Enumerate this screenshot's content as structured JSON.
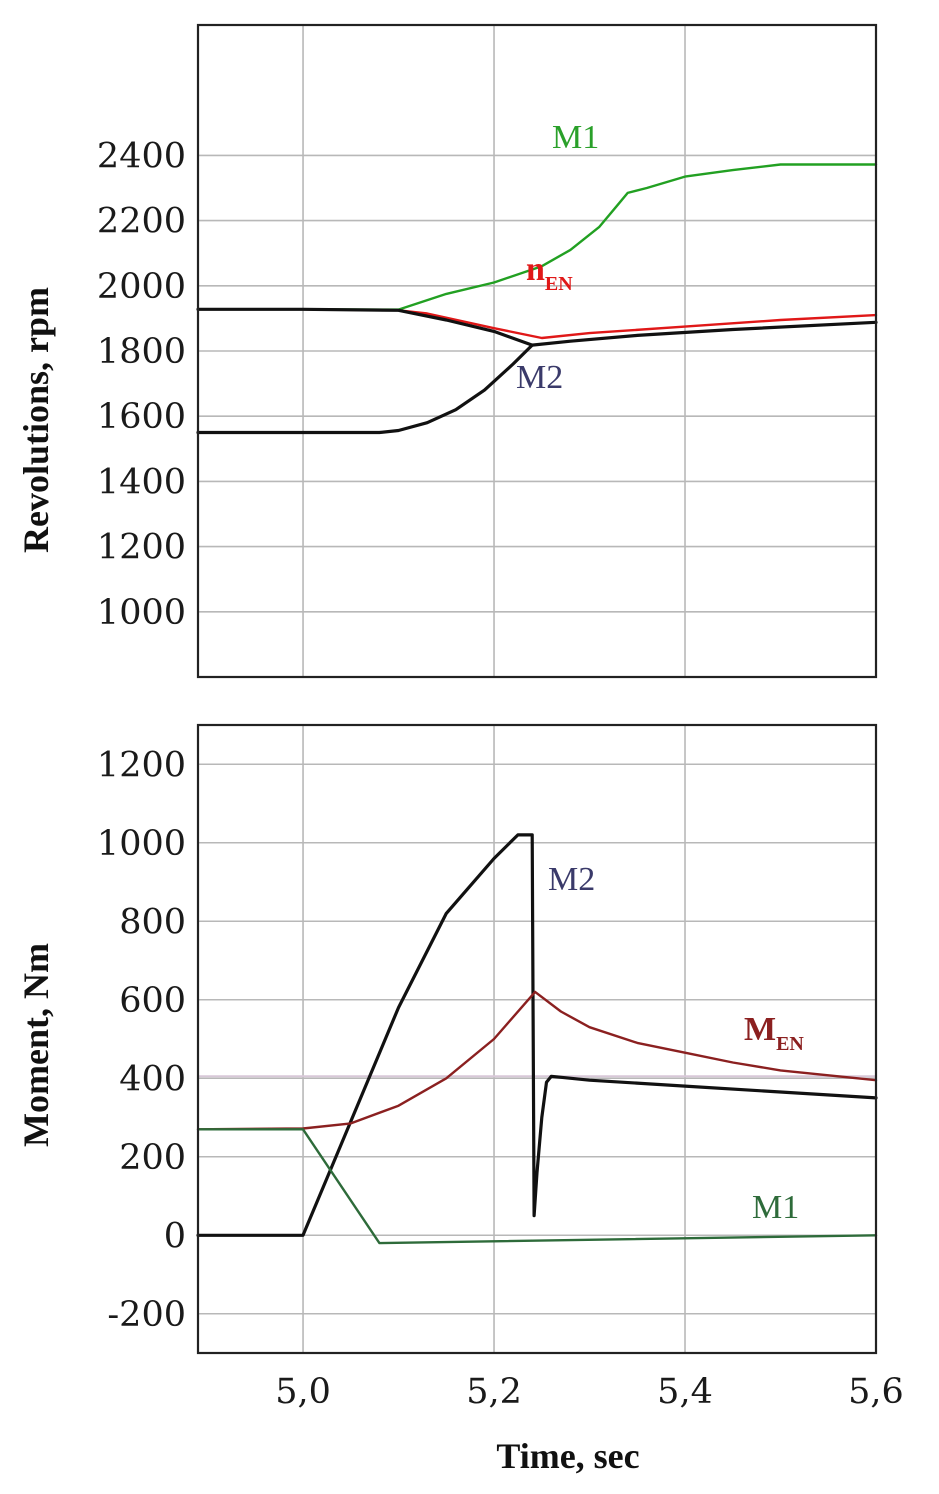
{
  "chart_data": [
    {
      "type": "line",
      "ylabel": "Revolutions, rpm",
      "xlim": [
        4.89,
        5.6
      ],
      "ylim": [
        800,
        2800
      ],
      "yticks": [
        1000,
        1200,
        1400,
        1600,
        1800,
        2000,
        2200,
        2400
      ],
      "ytick_labels": [
        "1000",
        "1200",
        "1400",
        "1600",
        "1800",
        "2000",
        "2200",
        "2400"
      ],
      "xgrid": [
        5.0,
        5.2,
        5.4
      ],
      "grid": true,
      "series": [
        {
          "name": "M1",
          "color": "#22a022",
          "x": [
            4.89,
            5.0,
            5.1,
            5.15,
            5.2,
            5.25,
            5.28,
            5.31,
            5.33,
            5.34,
            5.36,
            5.4,
            5.45,
            5.5,
            5.6
          ],
          "y": [
            1928,
            1928,
            1927,
            1975,
            2010,
            2060,
            2110,
            2180,
            2250,
            2285,
            2300,
            2335,
            2355,
            2372,
            2372
          ]
        },
        {
          "name": "nEN",
          "color": "#e01818",
          "x": [
            4.89,
            5.0,
            5.1,
            5.13,
            5.2,
            5.25,
            5.3,
            5.4,
            5.5,
            5.6
          ],
          "y": [
            1928,
            1928,
            1925,
            1915,
            1870,
            1840,
            1855,
            1875,
            1895,
            1910
          ]
        },
        {
          "name": "n",
          "color": "#111111",
          "x": [
            4.89,
            5.0,
            5.1,
            5.15,
            5.2,
            5.24,
            5.28,
            5.35,
            5.45,
            5.6
          ],
          "y": [
            1928,
            1928,
            1925,
            1895,
            1860,
            1818,
            1830,
            1848,
            1866,
            1888
          ]
        },
        {
          "name": "M2",
          "color": "#111111",
          "x": [
            4.89,
            5.0,
            5.08,
            5.1,
            5.13,
            5.16,
            5.19,
            5.22,
            5.24
          ],
          "y": [
            1550,
            1550,
            1550,
            1556,
            1580,
            1620,
            1680,
            1760,
            1818
          ]
        }
      ]
    },
    {
      "type": "line",
      "xlabel": "Time, sec",
      "ylabel": "Moment, Nm",
      "xlim": [
        4.89,
        5.6
      ],
      "ylim": [
        -300,
        1300
      ],
      "yticks": [
        -200,
        0,
        200,
        400,
        600,
        800,
        1000,
        1200
      ],
      "ytick_labels": [
        "-200",
        "0",
        "200",
        "400",
        "600",
        "800",
        "1000",
        "1200"
      ],
      "xticks": [
        5.0,
        5.2,
        5.4,
        5.6
      ],
      "xtick_labels": [
        "5,0",
        "5,2",
        "5,4",
        "5,6"
      ],
      "grid": true,
      "series": [
        {
          "name": "M2",
          "color": "#111111",
          "x": [
            4.89,
            5.0,
            5.05,
            5.1,
            5.15,
            5.2,
            5.225,
            5.24,
            5.242,
            5.245,
            5.25,
            5.255,
            5.26,
            5.3,
            5.4,
            5.5,
            5.6
          ],
          "y": [
            0,
            0,
            290,
            580,
            820,
            960,
            1020,
            1020,
            50,
            160,
            300,
            390,
            405,
            395,
            380,
            365,
            350
          ]
        },
        {
          "name": "MEN",
          "color": "#8b2020",
          "x": [
            4.89,
            5.0,
            5.05,
            5.1,
            5.15,
            5.2,
            5.243,
            5.27,
            5.3,
            5.35,
            5.4,
            5.45,
            5.5,
            5.6
          ],
          "y": [
            270,
            272,
            285,
            330,
            400,
            500,
            620,
            570,
            530,
            490,
            465,
            440,
            420,
            395
          ]
        },
        {
          "name": "M1",
          "color": "#2e6b3a",
          "x": [
            4.89,
            5.0,
            5.08,
            5.6
          ],
          "y": [
            270,
            270,
            -20,
            0
          ]
        }
      ],
      "reference_line": {
        "y": 405,
        "color": "#d8c8d8"
      }
    }
  ],
  "labels": {
    "top_ylabel": "Revolutions, rpm",
    "bottom_ylabel": "Moment, Nm",
    "xlabel": "Time, sec",
    "top_m1": "M1",
    "top_nen_main": "n",
    "top_nen_sub": "EN",
    "top_m2": "M2",
    "bot_m2": "M2",
    "bot_men_main": "M",
    "bot_men_sub": "EN",
    "bot_m1": "M1"
  }
}
